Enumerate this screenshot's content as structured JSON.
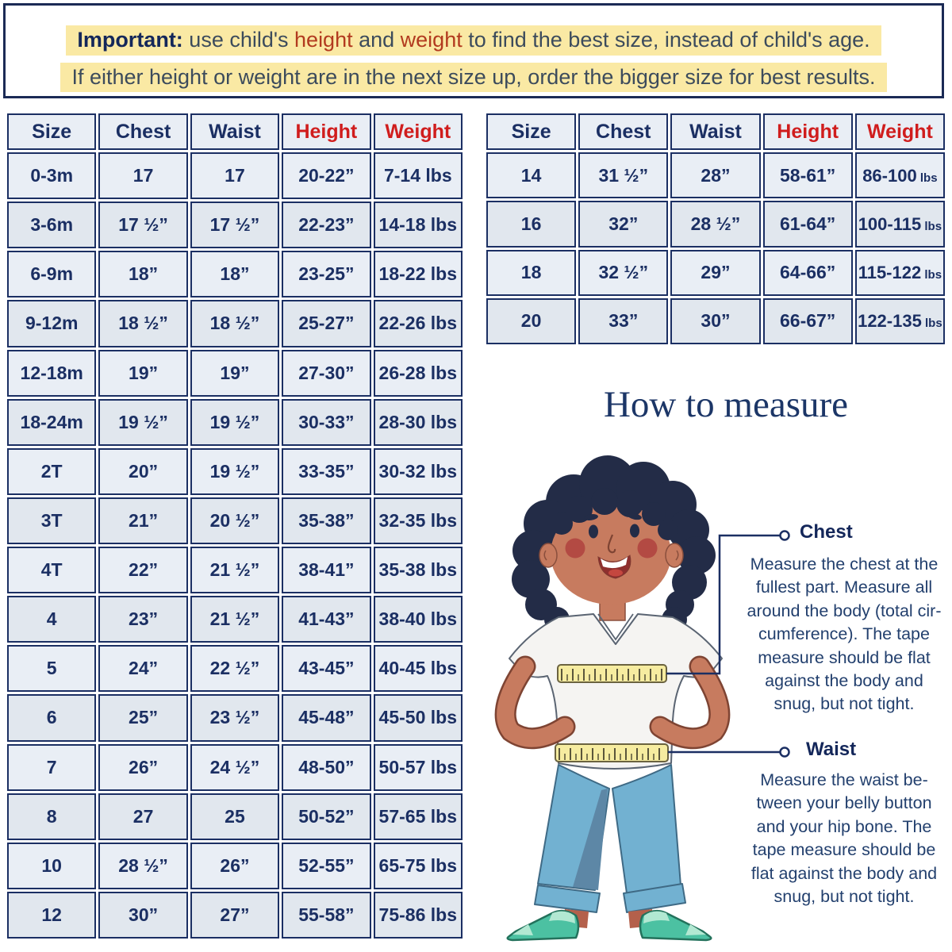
{
  "banner": {
    "line1": {
      "lead": "Important:",
      "seg1": " use child's ",
      "red1": "height",
      "seg2": " and ",
      "red2": "weight",
      "seg3": " to find the best size, instead of child's age."
    },
    "line2": "If either height or weight are in the next size up, order the bigger size for best results."
  },
  "size_chart_infant_toddler": {
    "headers": [
      {
        "label": "Size",
        "red": false
      },
      {
        "label": "Chest",
        "red": false
      },
      {
        "label": "Waist",
        "red": false
      },
      {
        "label": "Height",
        "red": true
      },
      {
        "label": "Weight",
        "red": true
      }
    ],
    "rows": [
      [
        "0-3m",
        "17",
        "17",
        "20-22”",
        "7-14 lbs"
      ],
      [
        "3-6m",
        "17 ½”",
        "17 ½”",
        "22-23”",
        "14-18 lbs"
      ],
      [
        "6-9m",
        "18”",
        "18”",
        "23-25”",
        "18-22 lbs"
      ],
      [
        "9-12m",
        "18 ½”",
        "18 ½”",
        "25-27”",
        "22-26 lbs"
      ],
      [
        "12-18m",
        "19”",
        "19”",
        "27-30”",
        "26-28 lbs"
      ],
      [
        "18-24m",
        "19 ½”",
        "19 ½”",
        "30-33”",
        "28-30 lbs"
      ],
      [
        "2T",
        "20”",
        "19 ½”",
        "33-35”",
        "30-32 lbs"
      ],
      [
        "3T",
        "21”",
        "20 ½”",
        "35-38”",
        "32-35 lbs"
      ],
      [
        "4T",
        "22”",
        "21 ½”",
        "38-41”",
        "35-38 lbs"
      ],
      [
        "4",
        "23”",
        "21 ½”",
        "41-43”",
        "38-40 lbs"
      ],
      [
        "5",
        "24”",
        "22 ½”",
        "43-45”",
        "40-45 lbs"
      ],
      [
        "6",
        "25”",
        "23 ½”",
        "45-48”",
        "45-50 lbs"
      ],
      [
        "7",
        "26”",
        "24 ½”",
        "48-50”",
        "50-57 lbs"
      ],
      [
        "8",
        "27",
        "25",
        "50-52”",
        "57-65 lbs"
      ],
      [
        "10",
        "28 ½”",
        "26”",
        "52-55”",
        "65-75 lbs"
      ],
      [
        "12",
        "30”",
        "27”",
        "55-58”",
        "75-86 lbs"
      ]
    ]
  },
  "size_chart_big_kids": {
    "small_unit": true,
    "headers": [
      {
        "label": "Size",
        "red": false
      },
      {
        "label": "Chest",
        "red": false
      },
      {
        "label": "Waist",
        "red": false
      },
      {
        "label": "Height",
        "red": true
      },
      {
        "label": "Weight",
        "red": true
      }
    ],
    "rows": [
      [
        "14",
        "31 ½”",
        "28”",
        "58-61”",
        "86-100 lbs"
      ],
      [
        "16",
        "32”",
        "28 ½”",
        "61-64”",
        "100-115 lbs"
      ],
      [
        "18",
        "32 ½”",
        "29”",
        "64-66”",
        "115-122 lbs"
      ],
      [
        "20",
        "33”",
        "30”",
        "66-67”",
        "122-135 lbs"
      ]
    ]
  },
  "how_to_measure": {
    "title": "How to measure",
    "chest": {
      "label": "Chest",
      "lines": [
        "Measure the chest at the",
        "fullest part. Measure all",
        "around the body (total cir-",
        "cumference). The tape",
        "measure should be flat",
        "against the body and",
        "snug, but not tight."
      ]
    },
    "waist": {
      "label": "Waist",
      "lines": [
        "Measure the waist be-",
        "tween your belly button",
        "and your hip bone. The",
        "tape measure should be",
        "flat against the body and",
        "snug, but not tight."
      ]
    }
  },
  "colors": {
    "navy": "#1b2f63",
    "banner_border": "#1b2a55",
    "header_red": "#d01d1d",
    "notice_red": "#b23a1f",
    "highlight_yellow": "#fae9a4",
    "cell_bg": "#e9eef5",
    "cell_bg_alt": "#e1e7ee",
    "tape_yellow": "#f6eca0",
    "jeans_blue": "#72b1d1",
    "shoe_green": "#4cc1a2"
  }
}
